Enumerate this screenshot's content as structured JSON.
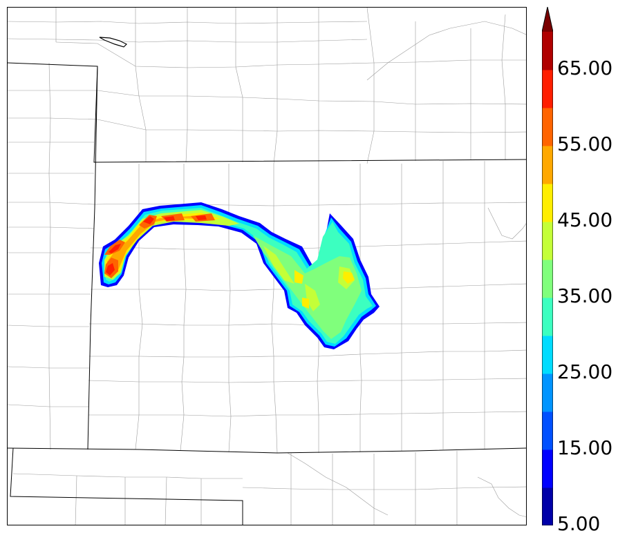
{
  "map": {
    "field_levels": [
      5,
      10,
      15,
      20,
      25,
      30,
      35,
      40,
      45,
      50,
      55,
      60,
      65,
      70
    ],
    "extend": "max"
  },
  "colorbar": {
    "colors": [
      "#0000a8",
      "#0000ff",
      "#0050ff",
      "#0094ff",
      "#00dcff",
      "#3cffc0",
      "#80ff7c",
      "#c4ff38",
      "#ffee00",
      "#ffa800",
      "#ff6400",
      "#ff1e00",
      "#b00000",
      "#7a0000"
    ],
    "labels": [
      {
        "value": 5,
        "text": "5.00"
      },
      {
        "value": 15,
        "text": "15.00"
      },
      {
        "value": 25,
        "text": "25.00"
      },
      {
        "value": 35,
        "text": "35.00"
      },
      {
        "value": 45,
        "text": "45.00"
      },
      {
        "value": 55,
        "text": "55.00"
      },
      {
        "value": 65,
        "text": "65.00"
      }
    ]
  }
}
